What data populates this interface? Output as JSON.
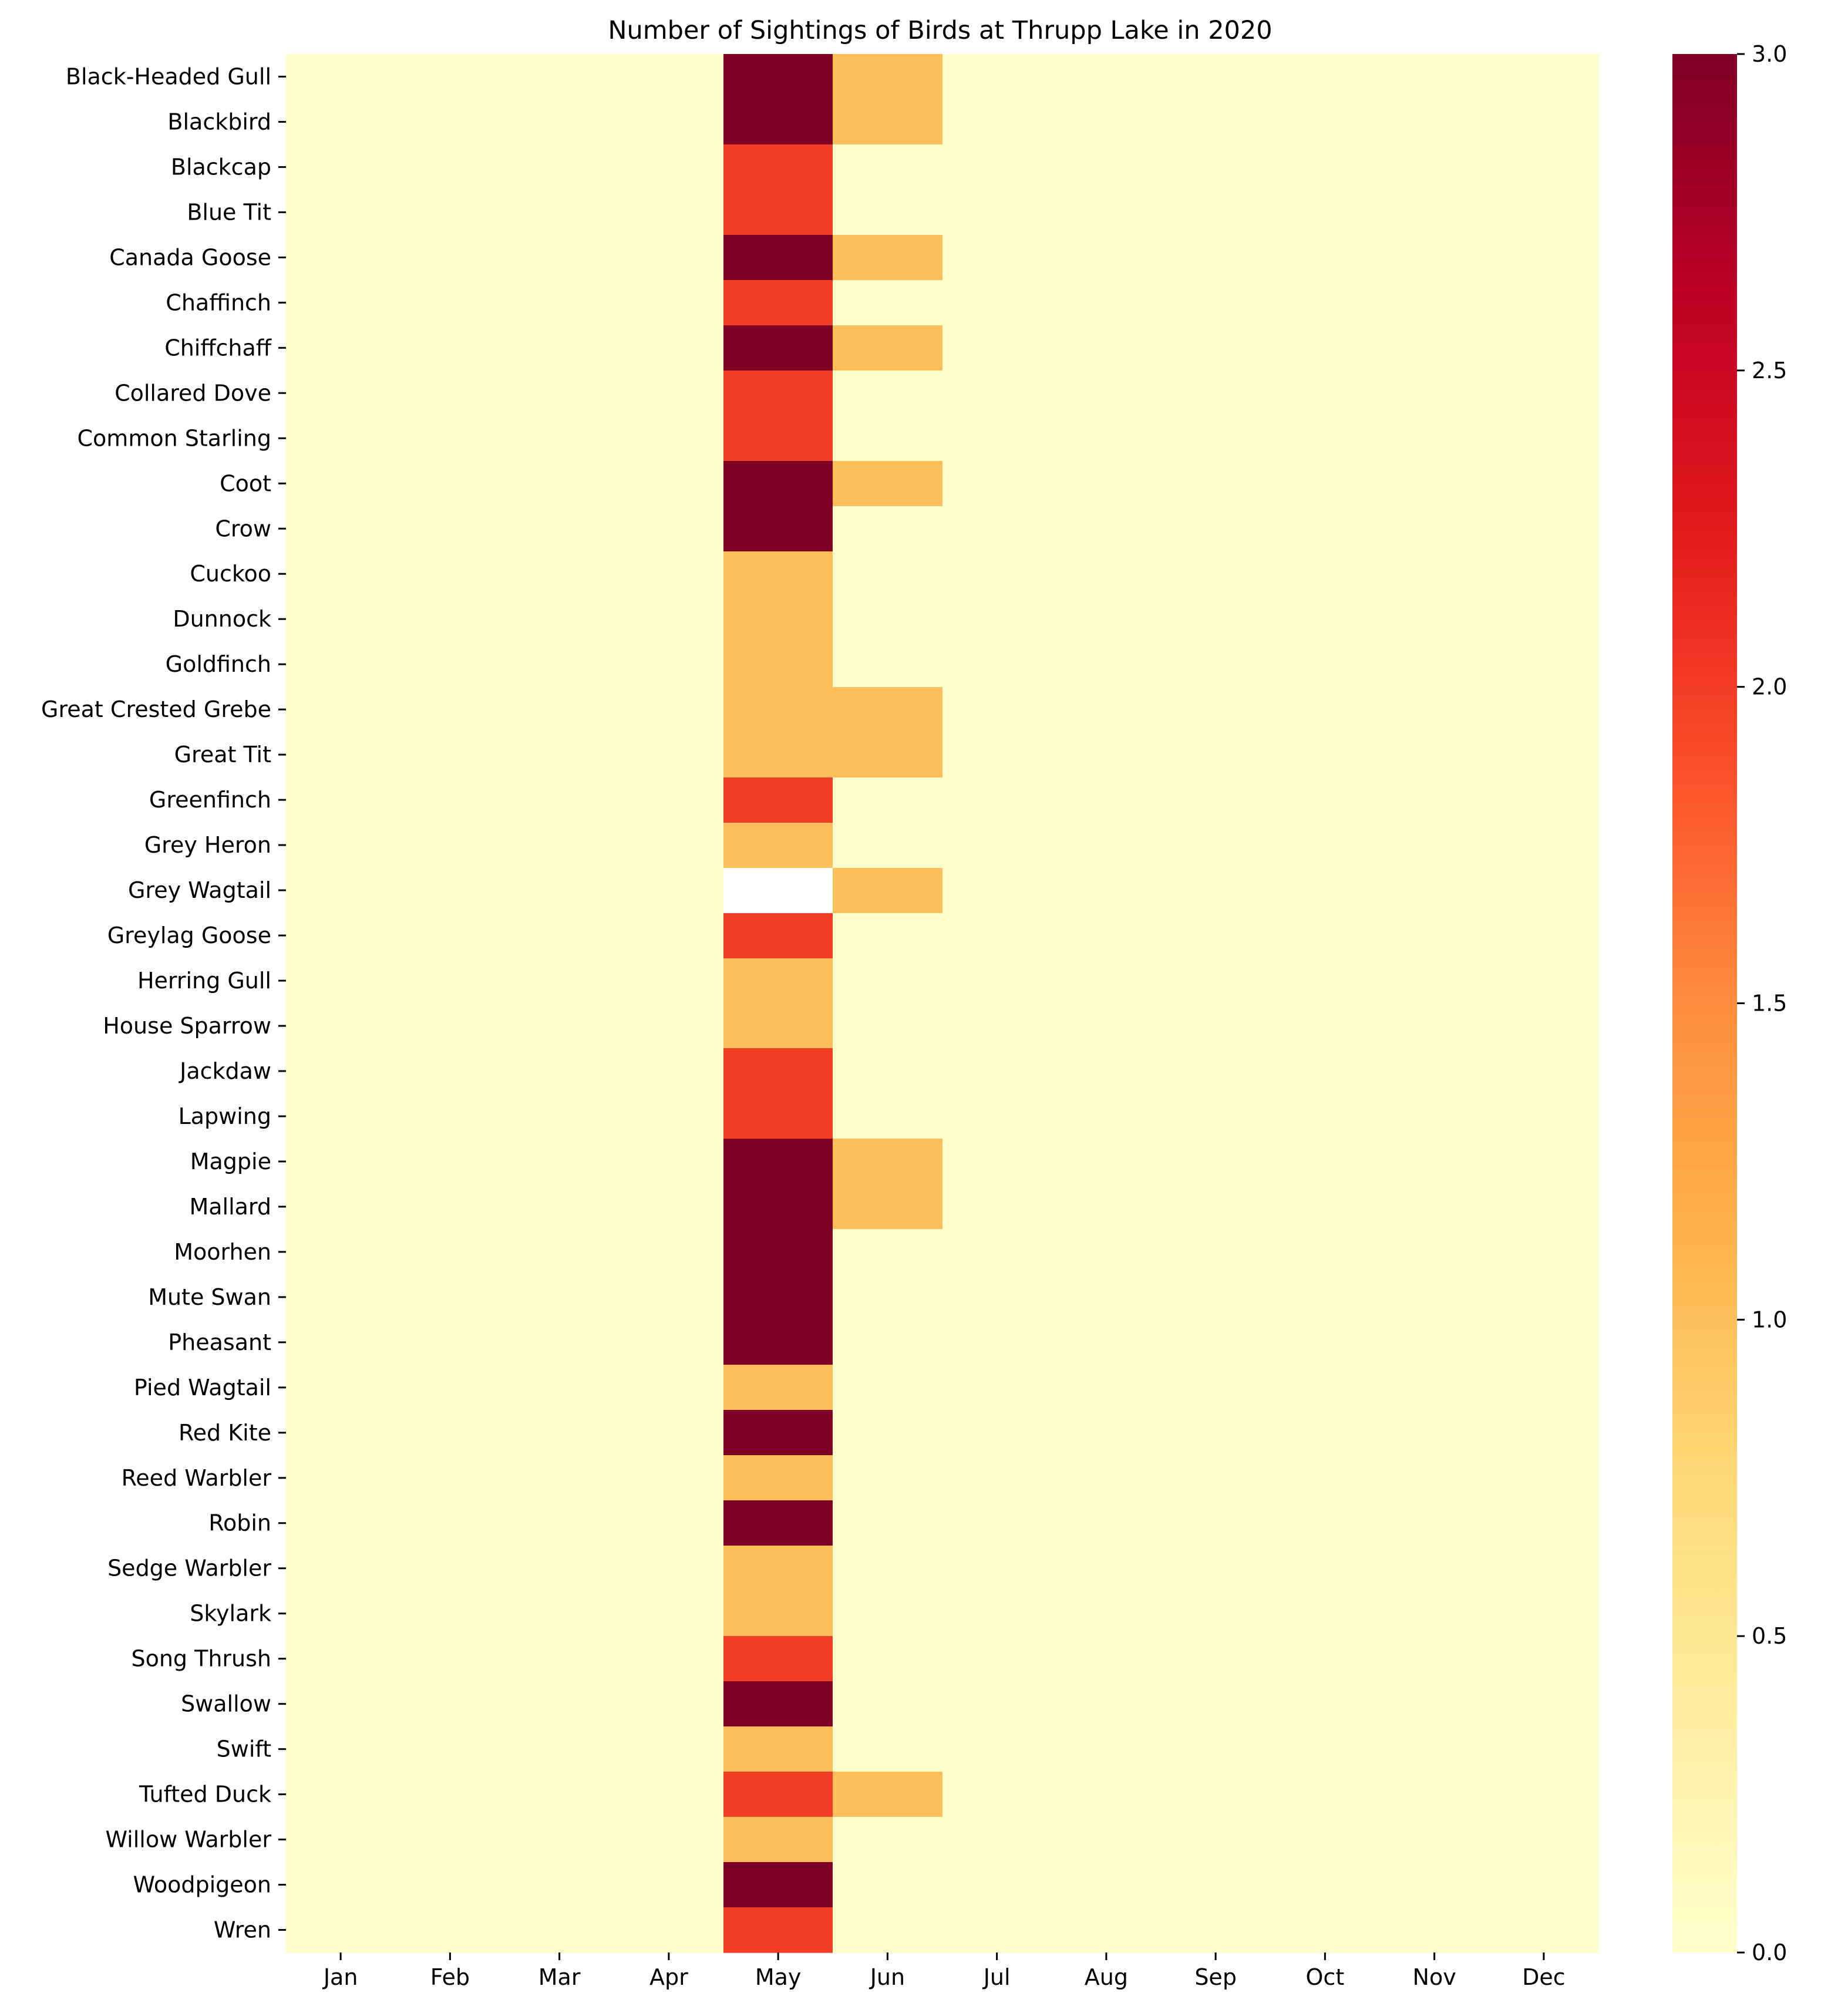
{
  "chart_data": {
    "type": "heatmap",
    "title": "Number of Sightings of Birds at Thrupp Lake in 2020",
    "xlabel": "",
    "ylabel": "",
    "colormap": "YlOrRd",
    "color_stops": [
      "#ffffcc",
      "#ffeda0",
      "#fed976",
      "#feb24c",
      "#fd8d3c",
      "#fc4e2a",
      "#e31a1c",
      "#bd0026",
      "#800026"
    ],
    "missing_color": "#ffffff",
    "vmin": 0,
    "vmax": 3,
    "colorbar_ticks": [
      "0.0",
      "0.5",
      "1.0",
      "1.5",
      "2.0",
      "2.5",
      "3.0"
    ],
    "columns": [
      "Jan",
      "Feb",
      "Mar",
      "Apr",
      "May",
      "Jun",
      "Jul",
      "Aug",
      "Sep",
      "Oct",
      "Nov",
      "Dec"
    ],
    "rows": [
      "Black-Headed Gull",
      "Blackbird",
      "Blackcap",
      "Blue Tit",
      "Canada Goose",
      "Chaffinch",
      "Chiffchaff",
      "Collared Dove",
      "Common Starling",
      "Coot",
      "Crow",
      "Cuckoo",
      "Dunnock",
      "Goldfinch",
      "Great Crested Grebe",
      "Great Tit",
      "Greenfinch",
      "Grey Heron",
      "Grey Wagtail",
      "Greylag Goose",
      "Herring Gull",
      "House Sparrow",
      "Jackdaw",
      "Lapwing",
      "Magpie",
      "Mallard",
      "Moorhen",
      "Mute Swan",
      "Pheasant",
      "Pied Wagtail",
      "Red Kite",
      "Reed Warbler",
      "Robin",
      "Sedge Warbler",
      "Skylark",
      "Song Thrush",
      "Swallow",
      "Swift",
      "Tufted Duck",
      "Willow Warbler",
      "Woodpigeon",
      "Wren"
    ],
    "values": [
      [
        0,
        0,
        0,
        0,
        3,
        1,
        0,
        0,
        0,
        0,
        0,
        0
      ],
      [
        0,
        0,
        0,
        0,
        3,
        1,
        0,
        0,
        0,
        0,
        0,
        0
      ],
      [
        0,
        0,
        0,
        0,
        2,
        0,
        0,
        0,
        0,
        0,
        0,
        0
      ],
      [
        0,
        0,
        0,
        0,
        2,
        0,
        0,
        0,
        0,
        0,
        0,
        0
      ],
      [
        0,
        0,
        0,
        0,
        3,
        1,
        0,
        0,
        0,
        0,
        0,
        0
      ],
      [
        0,
        0,
        0,
        0,
        2,
        0,
        0,
        0,
        0,
        0,
        0,
        0
      ],
      [
        0,
        0,
        0,
        0,
        3,
        1,
        0,
        0,
        0,
        0,
        0,
        0
      ],
      [
        0,
        0,
        0,
        0,
        2,
        0,
        0,
        0,
        0,
        0,
        0,
        0
      ],
      [
        0,
        0,
        0,
        0,
        2,
        0,
        0,
        0,
        0,
        0,
        0,
        0
      ],
      [
        0,
        0,
        0,
        0,
        3,
        1,
        0,
        0,
        0,
        0,
        0,
        0
      ],
      [
        0,
        0,
        0,
        0,
        3,
        0,
        0,
        0,
        0,
        0,
        0,
        0
      ],
      [
        0,
        0,
        0,
        0,
        1,
        0,
        0,
        0,
        0,
        0,
        0,
        0
      ],
      [
        0,
        0,
        0,
        0,
        1,
        0,
        0,
        0,
        0,
        0,
        0,
        0
      ],
      [
        0,
        0,
        0,
        0,
        1,
        0,
        0,
        0,
        0,
        0,
        0,
        0
      ],
      [
        0,
        0,
        0,
        0,
        1,
        1,
        0,
        0,
        0,
        0,
        0,
        0
      ],
      [
        0,
        0,
        0,
        0,
        1,
        1,
        0,
        0,
        0,
        0,
        0,
        0
      ],
      [
        0,
        0,
        0,
        0,
        2,
        0,
        0,
        0,
        0,
        0,
        0,
        0
      ],
      [
        0,
        0,
        0,
        0,
        1,
        0,
        0,
        0,
        0,
        0,
        0,
        0
      ],
      [
        0,
        0,
        0,
        0,
        null,
        1,
        0,
        0,
        0,
        0,
        0,
        0
      ],
      [
        0,
        0,
        0,
        0,
        2,
        0,
        0,
        0,
        0,
        0,
        0,
        0
      ],
      [
        0,
        0,
        0,
        0,
        1,
        0,
        0,
        0,
        0,
        0,
        0,
        0
      ],
      [
        0,
        0,
        0,
        0,
        1,
        0,
        0,
        0,
        0,
        0,
        0,
        0
      ],
      [
        0,
        0,
        0,
        0,
        2,
        0,
        0,
        0,
        0,
        0,
        0,
        0
      ],
      [
        0,
        0,
        0,
        0,
        2,
        0,
        0,
        0,
        0,
        0,
        0,
        0
      ],
      [
        0,
        0,
        0,
        0,
        3,
        1,
        0,
        0,
        0,
        0,
        0,
        0
      ],
      [
        0,
        0,
        0,
        0,
        3,
        1,
        0,
        0,
        0,
        0,
        0,
        0
      ],
      [
        0,
        0,
        0,
        0,
        3,
        0,
        0,
        0,
        0,
        0,
        0,
        0
      ],
      [
        0,
        0,
        0,
        0,
        3,
        0,
        0,
        0,
        0,
        0,
        0,
        0
      ],
      [
        0,
        0,
        0,
        0,
        3,
        0,
        0,
        0,
        0,
        0,
        0,
        0
      ],
      [
        0,
        0,
        0,
        0,
        1,
        0,
        0,
        0,
        0,
        0,
        0,
        0
      ],
      [
        0,
        0,
        0,
        0,
        3,
        0,
        0,
        0,
        0,
        0,
        0,
        0
      ],
      [
        0,
        0,
        0,
        0,
        1,
        0,
        0,
        0,
        0,
        0,
        0,
        0
      ],
      [
        0,
        0,
        0,
        0,
        3,
        0,
        0,
        0,
        0,
        0,
        0,
        0
      ],
      [
        0,
        0,
        0,
        0,
        1,
        0,
        0,
        0,
        0,
        0,
        0,
        0
      ],
      [
        0,
        0,
        0,
        0,
        1,
        0,
        0,
        0,
        0,
        0,
        0,
        0
      ],
      [
        0,
        0,
        0,
        0,
        2,
        0,
        0,
        0,
        0,
        0,
        0,
        0
      ],
      [
        0,
        0,
        0,
        0,
        3,
        0,
        0,
        0,
        0,
        0,
        0,
        0
      ],
      [
        0,
        0,
        0,
        0,
        1,
        0,
        0,
        0,
        0,
        0,
        0,
        0
      ],
      [
        0,
        0,
        0,
        0,
        2,
        1,
        0,
        0,
        0,
        0,
        0,
        0
      ],
      [
        0,
        0,
        0,
        0,
        1,
        0,
        0,
        0,
        0,
        0,
        0,
        0
      ],
      [
        0,
        0,
        0,
        0,
        3,
        0,
        0,
        0,
        0,
        0,
        0,
        0
      ],
      [
        0,
        0,
        0,
        0,
        2,
        0,
        0,
        0,
        0,
        0,
        0,
        0
      ]
    ]
  }
}
